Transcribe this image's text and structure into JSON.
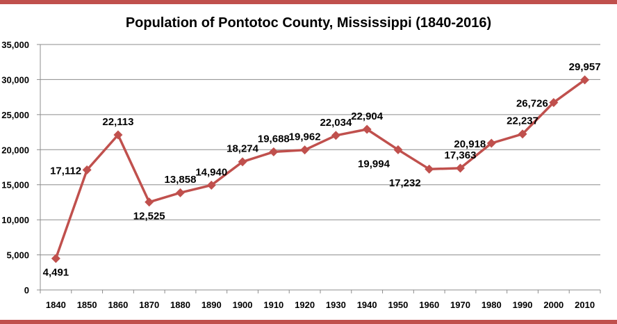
{
  "chart_data": {
    "type": "line",
    "title": "Population of Pontotoc County, Mississippi (1840-2016)",
    "xlabel": "",
    "ylabel": "",
    "ylim": [
      0,
      35000
    ],
    "yticks": [
      "0",
      "5,000",
      "10,000",
      "15,000",
      "20,000",
      "25,000",
      "30,000",
      "35,000"
    ],
    "categories": [
      "1840",
      "1850",
      "1860",
      "1870",
      "1880",
      "1890",
      "1900",
      "1910",
      "1920",
      "1930",
      "1940",
      "1950",
      "1960",
      "1970",
      "1980",
      "1990",
      "2000",
      "2010"
    ],
    "series": [
      {
        "values": [
          4491,
          17112,
          22113,
          12525,
          13858,
          14940,
          18274,
          19688,
          19962,
          22034,
          22904,
          19994,
          17232,
          17363,
          20918,
          22237,
          26726,
          29957
        ],
        "labels": [
          "4,491",
          "17,112",
          "22,113",
          "12,525",
          "13,858",
          "14,940",
          "18,274",
          "19,688",
          "19,962",
          "22,034",
          "22,904",
          "19,994",
          "17,232",
          "17,363",
          "20,918",
          "22,237",
          "26,726",
          "29,957"
        ],
        "color": "#c0504d"
      }
    ],
    "grid": true,
    "legend": "none",
    "frame_color": "#c0504d"
  }
}
